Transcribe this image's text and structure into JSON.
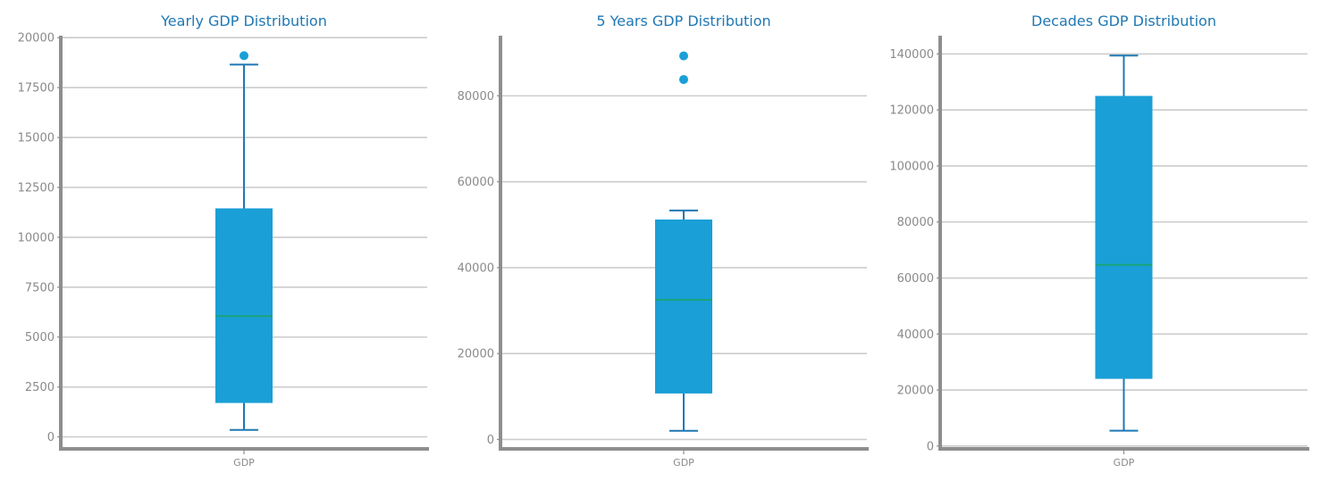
{
  "chart_data": [
    {
      "type": "box",
      "title": "Yearly GDP Distribution",
      "categories": [
        "GDP"
      ],
      "ylim": [
        -600,
        20100
      ],
      "yticks": [
        0,
        2500,
        5000,
        7500,
        10000,
        12500,
        15000,
        17500,
        20000
      ],
      "grid": true,
      "box": {
        "whisker_low": 350,
        "q1": 1700,
        "median": 6050,
        "q3": 11450,
        "whisker_high": 18650
      },
      "outliers": [
        19100
      ],
      "colors": {
        "box": "#1a9fd6",
        "whisker": "#1f78b4",
        "median": "#1aa37a",
        "outlier": "#1a9fd6"
      }
    },
    {
      "type": "box",
      "title": "5 Years GDP Distribution",
      "categories": [
        "GDP"
      ],
      "ylim": [
        -2200,
        94000
      ],
      "yticks": [
        0,
        20000,
        40000,
        60000,
        80000
      ],
      "grid": true,
      "box": {
        "whisker_low": 2000,
        "q1": 10700,
        "median": 32500,
        "q3": 51200,
        "whisker_high": 53300
      },
      "outliers": [
        89300,
        83800
      ],
      "colors": {
        "box": "#1a9fd6",
        "whisker": "#1f78b4",
        "median": "#1aa37a",
        "outlier": "#1a9fd6"
      }
    },
    {
      "type": "box",
      "title": "Decades GDP Distribution",
      "categories": [
        "GDP"
      ],
      "ylim": [
        -1000,
        146500
      ],
      "yticks": [
        0,
        20000,
        40000,
        60000,
        80000,
        100000,
        120000,
        140000
      ],
      "grid": true,
      "box": {
        "whisker_low": 5500,
        "q1": 24000,
        "median": 64700,
        "q3": 125000,
        "whisker_high": 139400
      },
      "outliers": [],
      "colors": {
        "box": "#1a9fd6",
        "whisker": "#1f78b4",
        "median": "#1aa37a",
        "outlier": "#1a9fd6"
      }
    }
  ]
}
